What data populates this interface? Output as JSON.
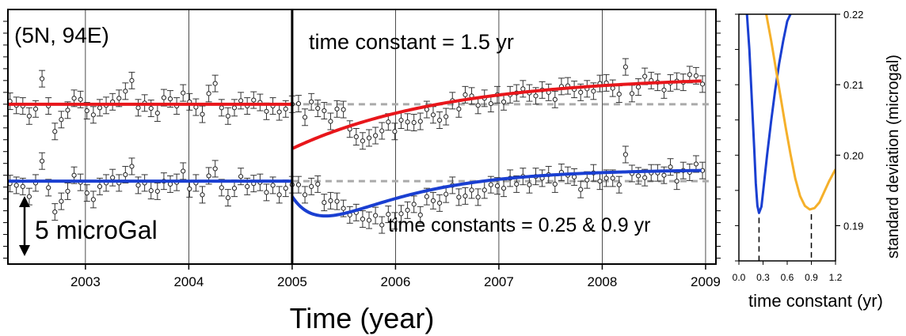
{
  "chart_data": [
    {
      "type": "scatter",
      "panel": "main",
      "location_label": "(5N, 94E)",
      "xlabel": "Time (year)",
      "ylabel": "",
      "xlim": [
        2002.25,
        2009.1
      ],
      "x_ticks": [
        "2003",
        "2004",
        "2005",
        "2006",
        "2007",
        "2008",
        "2009"
      ],
      "event_line_x": 2005.0,
      "scale_bar_label": "5 microGal",
      "scale_bar_ugal": 5,
      "ylim_ugal": [
        -27,
        16
      ],
      "series": [
        {
          "name": "time constant = 1.5 yr",
          "color": "#e8161b",
          "baseline_ugal": 0,
          "model": {
            "kind": "exponential",
            "tau_yr": 1.5,
            "step_ugal": -7.5,
            "amplitude_ugal": 12.3
          },
          "obs_ugal": [
            0.5,
            -0.2,
            -0.3,
            -2.0,
            -0.8,
            4.3,
            -0.3,
            -4.6,
            -2.6,
            -1.0,
            1.0,
            0.8,
            -1.1,
            -1.8,
            -0.6,
            -0.2,
            0.4,
            1.0,
            2.2,
            4.0,
            -0.6,
            0.2,
            -0.7,
            -1.5,
            1.1,
            0.9,
            -0.3,
            1.9,
            0.4,
            -0.5,
            -1.7,
            1.8,
            3.5,
            -0.6,
            -2.0,
            -0.6,
            0.6,
            -0.3,
            0.7,
            0.3,
            -1.2,
            -0.3,
            -1.3,
            -0.8,
            0.0,
            0.1,
            -2.2,
            0.4,
            -0.7,
            -1.1,
            -2.9,
            -0.8,
            -0.9,
            -4.2,
            -5.5,
            -6.2,
            -5.7,
            -5.3,
            -4.5,
            -3.0,
            -4.6,
            -2.7,
            -3.0,
            -3.1,
            -2.9,
            -0.9,
            -1.8,
            -2.7,
            -2.1,
            0.6,
            -0.8,
            1.6,
            1.4,
            -0.2,
            1.0,
            0.1,
            1.6,
            0.4,
            1.6,
            1.9,
            2.6,
            1.9,
            1.4,
            2.4,
            2.0,
            0.8,
            3.0,
            3.1,
            2.5,
            2.0,
            2.6,
            2.2,
            3.5,
            3.6,
            2.7,
            1.7,
            6.3,
            1.8,
            2.9,
            4.7,
            4.0,
            3.7,
            2.4,
            3.6,
            3.9,
            3.7,
            5.0,
            4.8,
            3.4
          ],
          "err_ugal": 1.4
        },
        {
          "name": "time constants = 0.25 & 0.9 yr",
          "color": "#1a3fd1",
          "baseline_ugal": -13,
          "model": {
            "kind": "double exponential",
            "tau_yr": [
              0.25,
              0.9
            ],
            "step_ugal": -2.6
          },
          "obs_ugal": [
            -13.4,
            -13.7,
            -13.9,
            -15.6,
            -13.3,
            -9.6,
            -14.1,
            -18.2,
            -16.4,
            -14.7,
            -12.0,
            -13.2,
            -15.0,
            -16.1,
            -13.9,
            -13.3,
            -12.4,
            -13.3,
            -11.9,
            -10.5,
            -13.7,
            -13.3,
            -14.6,
            -14.7,
            -13.0,
            -13.5,
            -13.2,
            -11.3,
            -14.3,
            -13.3,
            -15.3,
            -12.1,
            -10.9,
            -14.1,
            -15.8,
            -14.2,
            -12.2,
            -13.9,
            -13.4,
            -13.2,
            -14.9,
            -13.7,
            -15.3,
            -14.2,
            -13.6,
            -13.6,
            -15.3,
            -13.9,
            -13.5,
            -16.6,
            -16.3,
            -16.4,
            -17.6,
            -18.7,
            -18.3,
            -19.4,
            -19.6,
            -18.8,
            -20.4,
            -18.6,
            -19.7,
            -18.5,
            -17.9,
            -16.9,
            -18.7,
            -15.6,
            -16.3,
            -16.7,
            -15.2,
            -13.7,
            -15.7,
            -15.5,
            -14.5,
            -15.7,
            -14.5,
            -13.6,
            -13.8,
            -14.2,
            -12.5,
            -13.5,
            -12.2,
            -13.6,
            -12.2,
            -12.5,
            -11.9,
            -13.5,
            -11.5,
            -12.0,
            -12.3,
            -14.4,
            -12.8,
            -11.6,
            -13.0,
            -12.5,
            -12.5,
            -13.6,
            -8.5,
            -11.7,
            -12.1,
            -12.4,
            -11.6,
            -11.6,
            -12.0,
            -10.6,
            -13.0,
            -11.2,
            -11.5,
            -10.1,
            -11.2
          ],
          "err_ugal": 1.4
        }
      ]
    },
    {
      "type": "line",
      "panel": "side",
      "xlabel": "time constant (yr)",
      "ylabel": "standard deviation (microgal)",
      "xlim": [
        0,
        1.2
      ],
      "ylim": [
        0.185,
        0.22
      ],
      "x_ticks": [
        "0.0",
        "0.3",
        "0.6",
        "0.9",
        "1.2"
      ],
      "y_ticks": [
        "0.19",
        "0.20",
        "0.21",
        "0.22"
      ],
      "minima_x": [
        0.25,
        0.9
      ],
      "series": [
        {
          "color": "#1a3fd1",
          "x": [
            0.1,
            0.13,
            0.16,
            0.19,
            0.21,
            0.23,
            0.25,
            0.28,
            0.31,
            0.35,
            0.4,
            0.45,
            0.5,
            0.55,
            0.6,
            0.64
          ],
          "y": [
            0.22,
            0.215,
            0.208,
            0.201,
            0.196,
            0.1928,
            0.1918,
            0.1927,
            0.1958,
            0.2,
            0.2048,
            0.2092,
            0.213,
            0.2162,
            0.219,
            0.22
          ]
        },
        {
          "color": "#f5b02a",
          "x": [
            0.34,
            0.4,
            0.46,
            0.52,
            0.58,
            0.64,
            0.7,
            0.76,
            0.82,
            0.88,
            0.94,
            1.0,
            1.06,
            1.12,
            1.2
          ],
          "y": [
            0.22,
            0.2163,
            0.2122,
            0.2081,
            0.204,
            0.2002,
            0.1967,
            0.1942,
            0.1928,
            0.1923,
            0.1925,
            0.1933,
            0.1948,
            0.1963,
            0.198
          ]
        }
      ]
    }
  ]
}
